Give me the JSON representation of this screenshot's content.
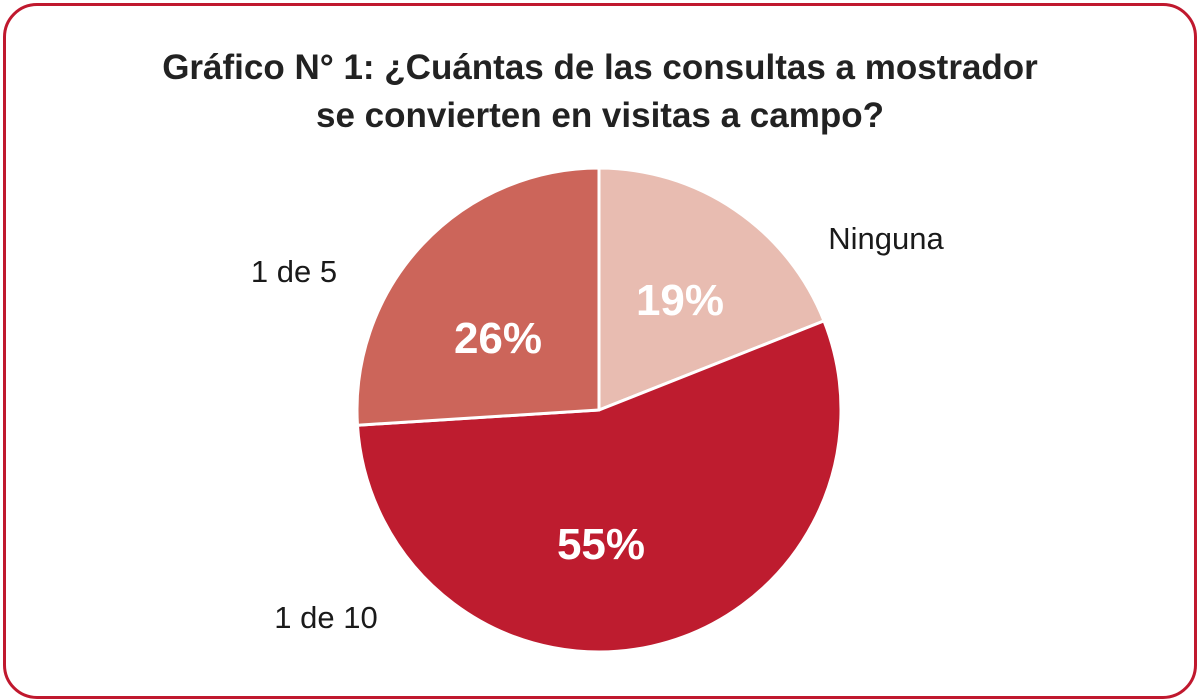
{
  "chart_data": {
    "type": "pie",
    "title_lines": [
      "Gráfico N° 1: ¿Cuántas de las consultas a mostrador",
      "se convierten en visitas a campo?"
    ],
    "slices": [
      {
        "label": "Ninguna",
        "value": 19,
        "display": "19%",
        "color": "#e8bcb1"
      },
      {
        "label": "1 de 10",
        "value": 55,
        "display": "55%",
        "color": "#be1c2f"
      },
      {
        "label": "1 de 5",
        "value": 26,
        "display": "26%",
        "color": "#cc655a"
      }
    ],
    "start": "12 o'clock",
    "direction": "clockwise",
    "legend": "none (category labels placed beside slices)"
  }
}
